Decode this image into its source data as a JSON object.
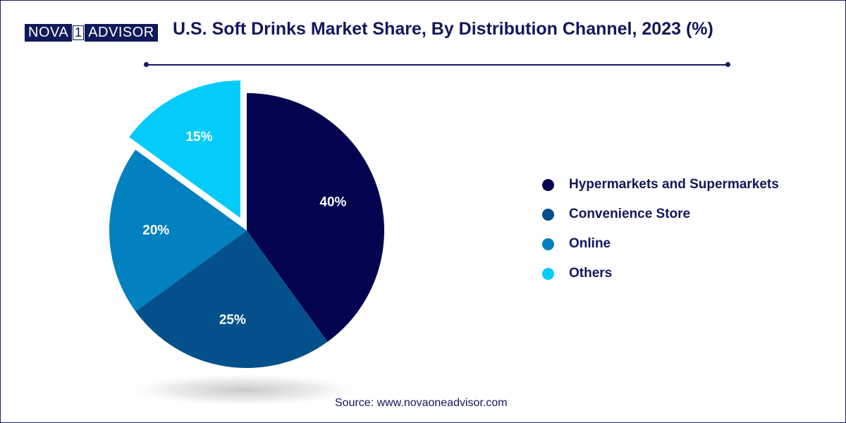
{
  "logo": {
    "left_text": "NOVA",
    "middle_text": "1",
    "right_text": "ADVISOR"
  },
  "title": "U.S. Soft Drinks Market Share, By Distribution Channel, 2023 (%)",
  "source": "Source: www.novaoneadvisor.com",
  "colors": {
    "title": "#12175c",
    "hypermarkets": "#03034f",
    "convenience": "#03508a",
    "online": "#0380c0",
    "others": "#03ccfb"
  },
  "chart_data": {
    "type": "pie",
    "title": "U.S. Soft Drinks Market Share, By Distribution Channel, 2023 (%)",
    "legend_position": "right",
    "categories": [
      "Hypermarkets and Supermarkets",
      "Convenience Store",
      "Online",
      "Others"
    ],
    "values": [
      40,
      25,
      20,
      15
    ],
    "data_labels": [
      "40%",
      "25%",
      "20%",
      "15%"
    ],
    "colors": [
      "#03034f",
      "#03508a",
      "#0380c0",
      "#03ccfb"
    ],
    "exploded": [
      "Others"
    ]
  }
}
